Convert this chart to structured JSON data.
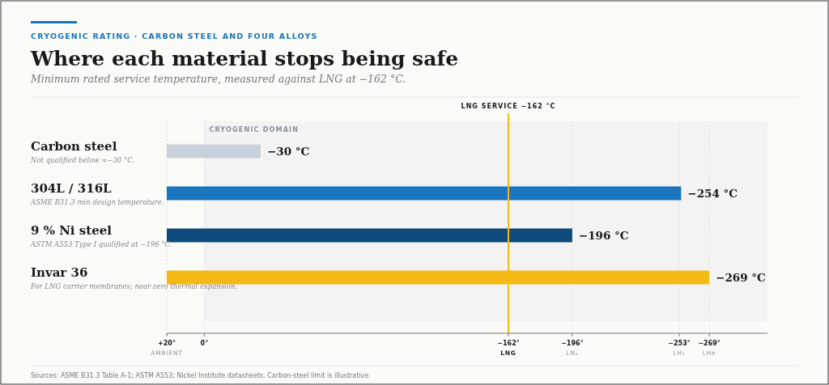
{
  "chart_data": {
    "type": "bar",
    "orientation": "horizontal",
    "title": "Where each material stops being safe",
    "subtitle": "Minimum rated service temperature, measured against LNG at −162 °C.",
    "categories": [
      "Carbon steel",
      "304L / 316L",
      "9 % Ni steel",
      "Invar 36"
    ],
    "base": [
      20,
      20,
      20,
      20
    ],
    "values": [
      -50,
      -274,
      -216,
      -289
    ],
    "colors": [
      "#c8d0da",
      "#1a75bc",
      "#0f4a7c",
      "#f5b914"
    ],
    "value_labels": [
      "−30 °C",
      "−254 °C",
      "−196 °C",
      "−269 °C"
    ],
    "xlim": [
      20,
      -300
    ],
    "xticks": [
      {
        "value": 20,
        "label": "+20°\nAMBIENT"
      },
      {
        "value": 0,
        "label": "0°"
      },
      {
        "value": -162,
        "label": "−162°\nLNG"
      },
      {
        "value": -196,
        "label": "−196°\nLN₂"
      },
      {
        "value": -253,
        "label": "−253°\nLH₂"
      },
      {
        "value": -269,
        "label": "−269°\nLHe"
      }
    ],
    "grid": "x",
    "ref_lines": [
      {
        "axis": "x",
        "value": -162,
        "label": "LNG SERVICE −162 °C",
        "color": "#f5b914"
      }
    ],
    "bands": [
      {
        "axis": "x",
        "from": 0,
        "to": -300,
        "label": "CRYOGENIC DOMAIN",
        "color": "#f3f3f3"
      }
    ],
    "annotations": [
      "CRYOGENIC RATING · CARBON STEEL AND FOUR ALLOYS",
      "Not qualified below ≈−30 °C.",
      "ASME B31.3 min design temperature.",
      "ASTM A553 Type I qualified at −196 °C.",
      "For LNG carrier membranes; near-zero thermal expansion.",
      "Sources: ASME B31.3 Table A-1; ASTM A553; Nickel Institute datasheets. Carbon-steel limit is illustrative."
    ]
  }
}
